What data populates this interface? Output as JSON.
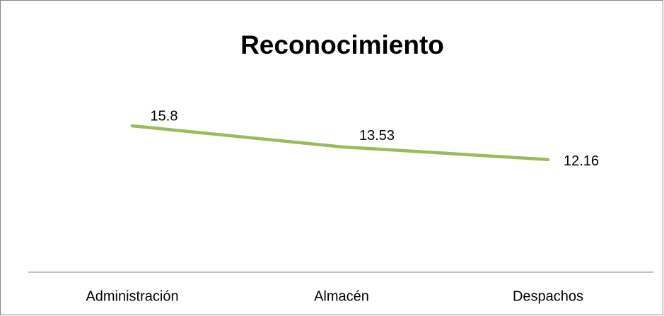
{
  "chart_data": {
    "type": "line",
    "title": "Reconocimiento",
    "categories": [
      "Administración",
      "Almacén",
      "Despachos"
    ],
    "values": [
      15.8,
      13.53,
      12.16
    ],
    "color": "#9bbb59"
  }
}
